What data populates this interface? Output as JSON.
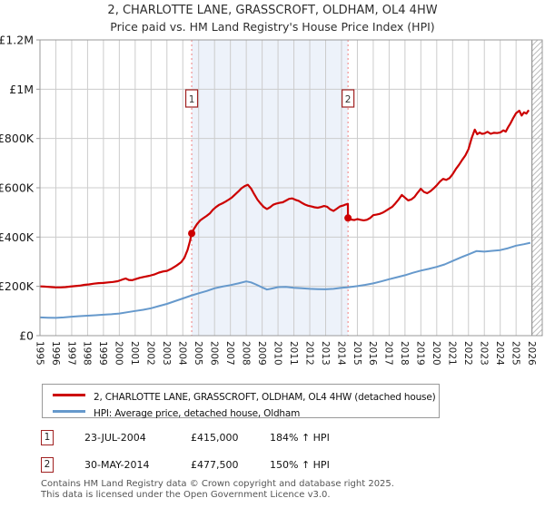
{
  "title": {
    "line1": "2, CHARLOTTE LANE, GRASSCROFT, OLDHAM, OL4 4HW",
    "line2": "Price paid vs. HM Land Registry's House Price Index (HPI)"
  },
  "legend": {
    "series1": "2, CHARLOTTE LANE, GRASSCROFT, OLDHAM, OL4 4HW (detached house)",
    "series2": "HPI: Average price, detached house, Oldham"
  },
  "annotations": [
    {
      "num": "1",
      "date": "23-JUL-2004",
      "price": "£415,000",
      "hpi": "184% ↑ HPI"
    },
    {
      "num": "2",
      "date": "30-MAY-2014",
      "price": "£477,500",
      "hpi": "150% ↑ HPI"
    }
  ],
  "footer": {
    "line1": "Contains HM Land Registry data © Crown copyright and database right 2025.",
    "line2": "This data is licensed under the Open Government Licence v3.0."
  },
  "colors": {
    "price_line": "#cc0000",
    "hpi_line": "#6699cc",
    "marker_dashed": "#f08080",
    "shaded_band": "#edf2fa",
    "grid": "#cccccc",
    "border": "#999999",
    "marker_box_border": "#a02020",
    "hatch": "#bbbbbb",
    "hatch_edge": "#888888",
    "tick_text": "#1a1a1a"
  },
  "chart_data": {
    "type": "line",
    "title": "2, CHARLOTTE LANE, GRASSCROFT, OLDHAM, OL4 4HW",
    "subtitle": "Price paid vs. HM Land Registry's House Price Index (HPI)",
    "x_range": [
      1995,
      2026.65
    ],
    "y_range_pounds": [
      0,
      1200000
    ],
    "grid": true,
    "legend_position": "below",
    "y_ticks": [
      {
        "value": 0,
        "label": "£0"
      },
      {
        "value": 200000,
        "label": "£200K"
      },
      {
        "value": 400000,
        "label": "£400K"
      },
      {
        "value": 600000,
        "label": "£600K"
      },
      {
        "value": 800000,
        "label": "£800K"
      },
      {
        "value": 1000000,
        "label": "£1M"
      },
      {
        "value": 1200000,
        "label": "£1.2M"
      }
    ],
    "x_ticks": [
      1995,
      1996,
      1997,
      1998,
      1999,
      2000,
      2001,
      2002,
      2003,
      2004,
      2005,
      2006,
      2007,
      2008,
      2009,
      2010,
      2011,
      2012,
      2013,
      2014,
      2015,
      2016,
      2017,
      2018,
      2019,
      2020,
      2021,
      2022,
      2023,
      2024,
      2025,
      2026
    ],
    "shaded_span_years": [
      2004.56,
      2014.41
    ],
    "future_hatch_start_year": 2026,
    "series_unit": "thousands of pounds",
    "series": [
      {
        "name": "2, CHARLOTTE LANE, GRASSCROFT, OLDHAM, OL4 4HW (detached house)",
        "color_key": "price_line",
        "points": [
          [
            1995.0,
            200
          ],
          [
            1995.25,
            199
          ],
          [
            1995.5,
            198
          ],
          [
            1995.75,
            197
          ],
          [
            1996.0,
            196
          ],
          [
            1996.3,
            196
          ],
          [
            1996.6,
            197
          ],
          [
            1996.9,
            199
          ],
          [
            1997.2,
            201
          ],
          [
            1997.5,
            203
          ],
          [
            1997.8,
            206
          ],
          [
            1998.1,
            208
          ],
          [
            1998.4,
            211
          ],
          [
            1998.7,
            213
          ],
          [
            1999.0,
            214
          ],
          [
            1999.3,
            216
          ],
          [
            1999.6,
            218
          ],
          [
            1999.9,
            221
          ],
          [
            2000.2,
            228
          ],
          [
            2000.4,
            232
          ],
          [
            2000.6,
            226
          ],
          [
            2000.8,
            225
          ],
          [
            2001.0,
            229
          ],
          [
            2001.3,
            235
          ],
          [
            2001.6,
            239
          ],
          [
            2001.9,
            243
          ],
          [
            2002.2,
            248
          ],
          [
            2002.5,
            256
          ],
          [
            2002.8,
            261
          ],
          [
            2003.0,
            263
          ],
          [
            2003.3,
            272
          ],
          [
            2003.6,
            284
          ],
          [
            2003.9,
            298
          ],
          [
            2004.1,
            316
          ],
          [
            2004.3,
            348
          ],
          [
            2004.45,
            383
          ],
          [
            2004.56,
            415
          ],
          [
            2004.7,
            433
          ],
          [
            2004.9,
            453
          ],
          [
            2005.1,
            468
          ],
          [
            2005.3,
            477
          ],
          [
            2005.5,
            486
          ],
          [
            2005.7,
            496
          ],
          [
            2005.9,
            511
          ],
          [
            2006.1,
            522
          ],
          [
            2006.3,
            531
          ],
          [
            2006.5,
            537
          ],
          [
            2006.7,
            544
          ],
          [
            2006.9,
            552
          ],
          [
            2007.1,
            561
          ],
          [
            2007.3,
            573
          ],
          [
            2007.5,
            585
          ],
          [
            2007.7,
            598
          ],
          [
            2007.9,
            607
          ],
          [
            2008.1,
            612
          ],
          [
            2008.3,
            597
          ],
          [
            2008.5,
            574
          ],
          [
            2008.7,
            552
          ],
          [
            2008.9,
            536
          ],
          [
            2009.1,
            522
          ],
          [
            2009.3,
            514
          ],
          [
            2009.5,
            521
          ],
          [
            2009.7,
            531
          ],
          [
            2009.9,
            536
          ],
          [
            2010.1,
            539
          ],
          [
            2010.3,
            541
          ],
          [
            2010.5,
            548
          ],
          [
            2010.7,
            555
          ],
          [
            2010.9,
            557
          ],
          [
            2011.1,
            551
          ],
          [
            2011.3,
            547
          ],
          [
            2011.5,
            539
          ],
          [
            2011.7,
            532
          ],
          [
            2011.9,
            527
          ],
          [
            2012.1,
            524
          ],
          [
            2012.3,
            521
          ],
          [
            2012.5,
            519
          ],
          [
            2012.7,
            522
          ],
          [
            2012.9,
            526
          ],
          [
            2013.1,
            523
          ],
          [
            2013.3,
            512
          ],
          [
            2013.5,
            506
          ],
          [
            2013.7,
            515
          ],
          [
            2013.9,
            524
          ],
          [
            2014.1,
            528
          ],
          [
            2014.25,
            532
          ],
          [
            2014.4,
            535
          ],
          [
            2014.41,
            477.5
          ],
          [
            2014.6,
            471
          ],
          [
            2014.8,
            469
          ],
          [
            2015.0,
            473
          ],
          [
            2015.2,
            470
          ],
          [
            2015.4,
            468
          ],
          [
            2015.6,
            470
          ],
          [
            2015.8,
            477
          ],
          [
            2016.0,
            489
          ],
          [
            2016.2,
            491
          ],
          [
            2016.4,
            494
          ],
          [
            2016.6,
            499
          ],
          [
            2016.8,
            507
          ],
          [
            2017.0,
            515
          ],
          [
            2017.2,
            523
          ],
          [
            2017.4,
            537
          ],
          [
            2017.6,
            553
          ],
          [
            2017.8,
            571
          ],
          [
            2018.0,
            560
          ],
          [
            2018.2,
            549
          ],
          [
            2018.4,
            553
          ],
          [
            2018.6,
            563
          ],
          [
            2018.8,
            580
          ],
          [
            2019.0,
            596
          ],
          [
            2019.2,
            583
          ],
          [
            2019.4,
            578
          ],
          [
            2019.6,
            586
          ],
          [
            2019.8,
            597
          ],
          [
            2020.0,
            610
          ],
          [
            2020.2,
            625
          ],
          [
            2020.4,
            636
          ],
          [
            2020.6,
            632
          ],
          [
            2020.8,
            639
          ],
          [
            2021.0,
            655
          ],
          [
            2021.2,
            676
          ],
          [
            2021.4,
            693
          ],
          [
            2021.6,
            713
          ],
          [
            2021.8,
            731
          ],
          [
            2022.0,
            757
          ],
          [
            2022.2,
            801
          ],
          [
            2022.4,
            836
          ],
          [
            2022.55,
            817
          ],
          [
            2022.7,
            824
          ],
          [
            2022.85,
            819
          ],
          [
            2023.0,
            820
          ],
          [
            2023.2,
            827
          ],
          [
            2023.4,
            819
          ],
          [
            2023.6,
            823
          ],
          [
            2023.8,
            822
          ],
          [
            2024.0,
            824
          ],
          [
            2024.2,
            833
          ],
          [
            2024.35,
            828
          ],
          [
            2024.5,
            846
          ],
          [
            2024.65,
            862
          ],
          [
            2024.8,
            881
          ],
          [
            2025.0,
            903
          ],
          [
            2025.2,
            913
          ],
          [
            2025.35,
            893
          ],
          [
            2025.5,
            906
          ],
          [
            2025.65,
            901
          ],
          [
            2025.8,
            915
          ]
        ]
      },
      {
        "name": "HPI: Average price, detached house, Oldham",
        "color_key": "hpi_line",
        "points": [
          [
            1995.0,
            74
          ],
          [
            1995.5,
            73
          ],
          [
            1996.0,
            72
          ],
          [
            1996.5,
            74
          ],
          [
            1997.0,
            77
          ],
          [
            1997.5,
            79
          ],
          [
            1998.0,
            81
          ],
          [
            1998.5,
            83
          ],
          [
            1999.0,
            85
          ],
          [
            1999.5,
            87
          ],
          [
            2000.0,
            90
          ],
          [
            2000.5,
            95
          ],
          [
            2001.0,
            100
          ],
          [
            2001.5,
            105
          ],
          [
            2002.0,
            111
          ],
          [
            2002.5,
            120
          ],
          [
            2003.0,
            129
          ],
          [
            2003.5,
            140
          ],
          [
            2004.0,
            151
          ],
          [
            2004.5,
            162
          ],
          [
            2005.0,
            172
          ],
          [
            2005.5,
            181
          ],
          [
            2006.0,
            192
          ],
          [
            2006.5,
            199
          ],
          [
            2007.0,
            205
          ],
          [
            2007.5,
            212
          ],
          [
            2008.0,
            220
          ],
          [
            2008.3,
            216
          ],
          [
            2008.6,
            208
          ],
          [
            2009.0,
            196
          ],
          [
            2009.3,
            187
          ],
          [
            2009.6,
            191
          ],
          [
            2010.0,
            197
          ],
          [
            2010.5,
            198
          ],
          [
            2011.0,
            194
          ],
          [
            2011.5,
            192
          ],
          [
            2012.0,
            190
          ],
          [
            2012.5,
            189
          ],
          [
            2013.0,
            188
          ],
          [
            2013.5,
            190
          ],
          [
            2014.0,
            194
          ],
          [
            2014.5,
            197
          ],
          [
            2015.0,
            201
          ],
          [
            2015.5,
            206
          ],
          [
            2016.0,
            212
          ],
          [
            2016.5,
            220
          ],
          [
            2017.0,
            229
          ],
          [
            2017.5,
            237
          ],
          [
            2018.0,
            245
          ],
          [
            2018.5,
            255
          ],
          [
            2019.0,
            264
          ],
          [
            2019.5,
            271
          ],
          [
            2020.0,
            279
          ],
          [
            2020.5,
            289
          ],
          [
            2021.0,
            303
          ],
          [
            2021.5,
            317
          ],
          [
            2022.0,
            330
          ],
          [
            2022.5,
            343
          ],
          [
            2023.0,
            341
          ],
          [
            2023.5,
            344
          ],
          [
            2024.0,
            347
          ],
          [
            2024.5,
            355
          ],
          [
            2025.0,
            365
          ],
          [
            2025.5,
            371
          ],
          [
            2025.9,
            377
          ]
        ]
      }
    ],
    "sale_points": [
      {
        "label": "1",
        "year": 2004.56,
        "price_pounds": 415000,
        "date": "23-JUL-2004",
        "vs_hpi": "184% ↑ HPI"
      },
      {
        "label": "2",
        "year": 2014.41,
        "price_pounds": 477500,
        "date": "30-MAY-2014",
        "vs_hpi": "150% ↑ HPI"
      }
    ]
  }
}
